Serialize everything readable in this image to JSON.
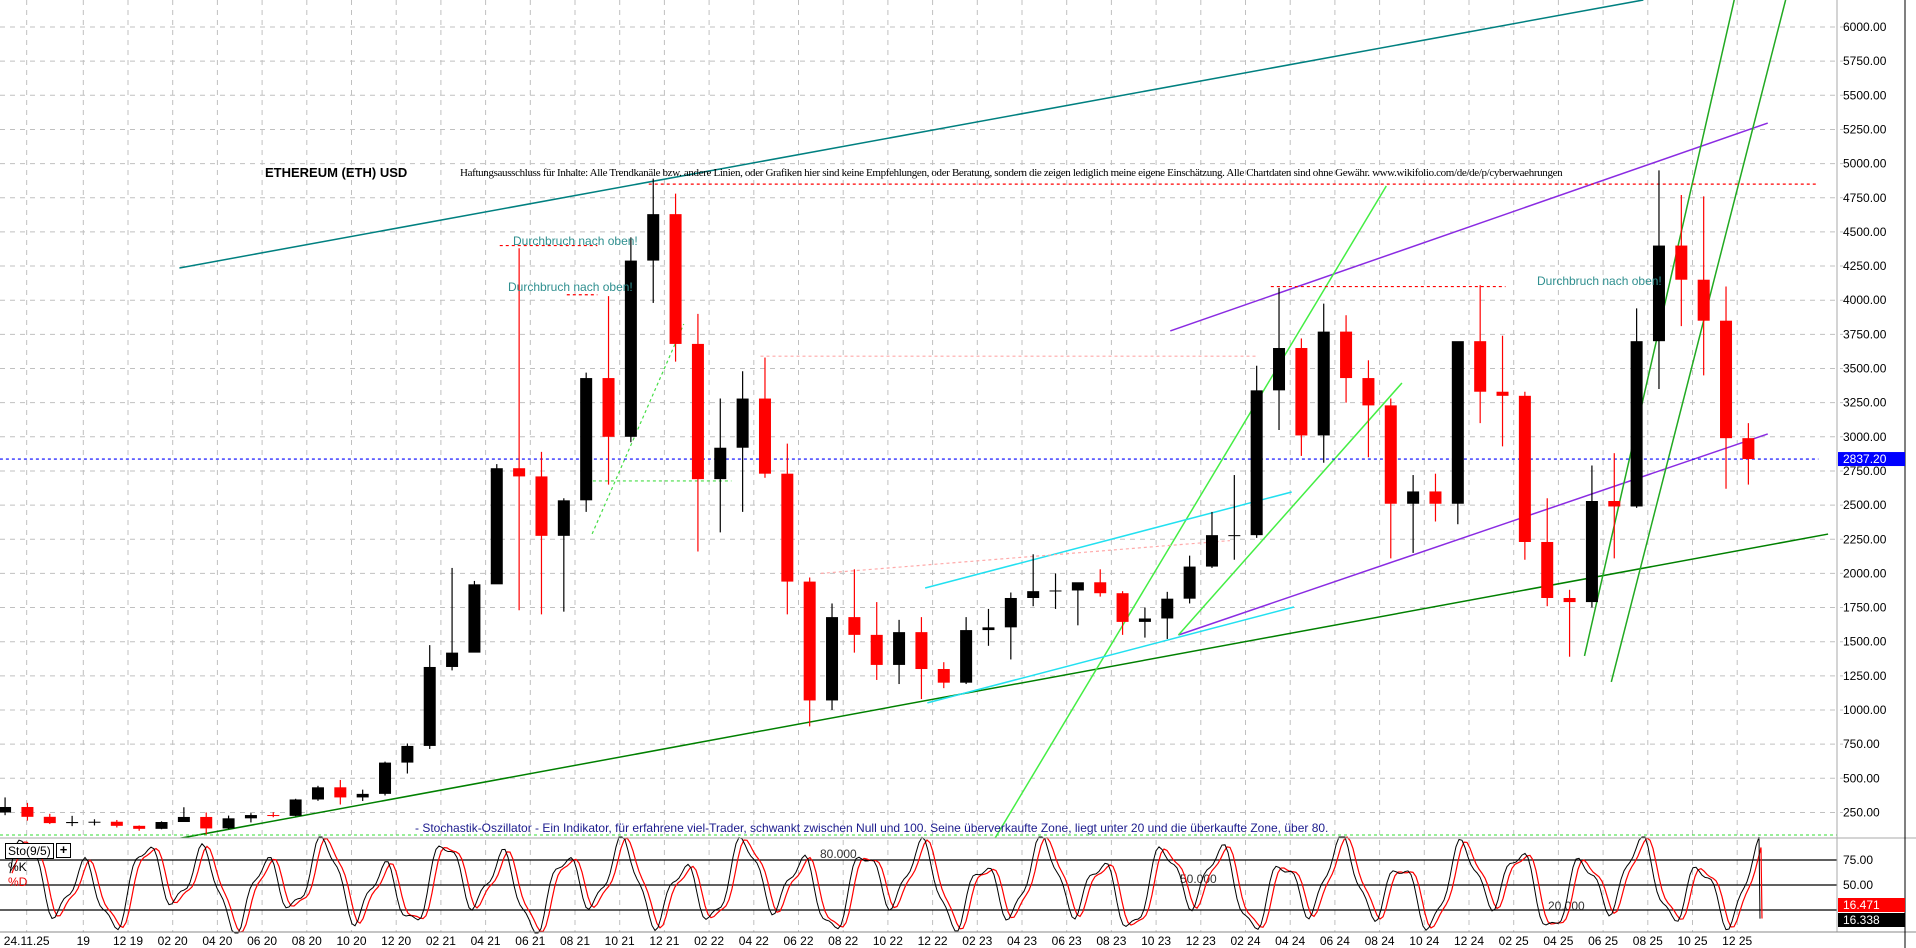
{
  "header": {
    "title": "ETHEREUM (ETH) USD",
    "disclaimer": "Haftungsausschluss für Inhalte: Alle Trendkanäle bzw. andere Linien, oder Grafiken hier sind keine Empfehlungen, oder Beratung, sondern die zeigen lediglich meine eigene Einschätzung. Alle Chartdaten sind ohne Gewähr.  www.wikifolio.com/de/de/p/cyberwaehrungen"
  },
  "annotations": {
    "breakout_labels": [
      "Durchbruch nach oben!",
      "Durchbruch nach oben!",
      "Durchbruch nach oben!"
    ],
    "stochastic_note": "- Stochastik-Oszillator - Ein Indikator, für erfahrene viel-Trader, schwankt zwischen Null und 100. Seine überverkaufte Zone, liegt unter 20 und die überkaufte Zone, über 80."
  },
  "indicator": {
    "label": "Sto(9/5)",
    "plus": "+",
    "k_label": "%K",
    "d_label": "%D",
    "level_labels": [
      "80.000",
      "50.000",
      "20.000"
    ],
    "k_last": "16.338",
    "d_last": "16.471",
    "axis_ticks": [
      "75.00",
      "50.00"
    ],
    "k_color": "#000000",
    "d_color": "#ff0000"
  },
  "colors": {
    "up": "#000000",
    "down": "#ff0000",
    "last_price_box": "#0000ff",
    "grid": "#c0c0c0"
  },
  "chart_data": {
    "type": "candlestick",
    "title": "ETHEREUM (ETH) USD",
    "ylim": [
      0,
      6100
    ],
    "yticks": [
      250,
      500,
      750,
      1000,
      1250,
      1500,
      1750,
      2000,
      2250,
      2500,
      2750,
      3000,
      3250,
      3500,
      3750,
      4000,
      4250,
      4500,
      4750,
      5000,
      5250,
      5500,
      5750,
      6000
    ],
    "last_price": "2837.20",
    "grid": true,
    "xticks": [
      {
        "label": "24.11.25",
        "date": "2019-07-15"
      },
      {
        "label": "19",
        "date": "2019-10-01"
      },
      {
        "label": "12 19",
        "date": "2019-12-01"
      },
      {
        "label": "02 20",
        "date": "2020-02-01"
      },
      {
        "label": "04 20",
        "date": "2020-04-01"
      },
      {
        "label": "06 20",
        "date": "2020-06-01"
      },
      {
        "label": "08 20",
        "date": "2020-08-01"
      },
      {
        "label": "10 20",
        "date": "2020-10-01"
      },
      {
        "label": "12 20",
        "date": "2020-12-01"
      },
      {
        "label": "02 21",
        "date": "2021-02-01"
      },
      {
        "label": "04 21",
        "date": "2021-04-01"
      },
      {
        "label": "06 21",
        "date": "2021-06-01"
      },
      {
        "label": "08 21",
        "date": "2021-08-01"
      },
      {
        "label": "10 21",
        "date": "2021-10-01"
      },
      {
        "label": "12 21",
        "date": "2021-12-01"
      },
      {
        "label": "02 22",
        "date": "2022-02-01"
      },
      {
        "label": "04 22",
        "date": "2022-04-01"
      },
      {
        "label": "06 22",
        "date": "2022-06-01"
      },
      {
        "label": "08 22",
        "date": "2022-08-01"
      },
      {
        "label": "10 22",
        "date": "2022-10-01"
      },
      {
        "label": "12 22",
        "date": "2022-12-01"
      },
      {
        "label": "02 23",
        "date": "2023-02-01"
      },
      {
        "label": "04 23",
        "date": "2023-04-01"
      },
      {
        "label": "06 23",
        "date": "2023-06-01"
      },
      {
        "label": "08 23",
        "date": "2023-08-01"
      },
      {
        "label": "10 23",
        "date": "2023-10-01"
      },
      {
        "label": "12 23",
        "date": "2023-12-01"
      },
      {
        "label": "02 24",
        "date": "2024-02-01"
      },
      {
        "label": "04 24",
        "date": "2024-04-01"
      },
      {
        "label": "06 24",
        "date": "2024-06-01"
      },
      {
        "label": "08 24",
        "date": "2024-08-01"
      },
      {
        "label": "10 24",
        "date": "2024-10-01"
      },
      {
        "label": "12 24",
        "date": "2024-12-01"
      },
      {
        "label": "02 25",
        "date": "2025-02-01"
      },
      {
        "label": "04 25",
        "date": "2025-04-01"
      },
      {
        "label": "06 25",
        "date": "2025-06-01"
      },
      {
        "label": "08 25",
        "date": "2025-08-01"
      },
      {
        "label": "10 25",
        "date": "2025-10-01"
      },
      {
        "label": "12 25",
        "date": "2025-12-01"
      }
    ],
    "ohlc": [
      [
        "2019-06",
        250,
        360,
        230,
        290
      ],
      [
        "2019-07",
        290,
        320,
        190,
        218
      ],
      [
        "2019-08",
        218,
        240,
        165,
        172
      ],
      [
        "2019-09",
        172,
        225,
        150,
        180
      ],
      [
        "2019-10",
        180,
        200,
        155,
        182
      ],
      [
        "2019-11",
        182,
        195,
        140,
        152
      ],
      [
        "2019-12",
        152,
        155,
        116,
        130
      ],
      [
        "2020-01",
        130,
        185,
        127,
        180
      ],
      [
        "2020-02",
        180,
        288,
        180,
        217
      ],
      [
        "2020-03",
        217,
        250,
        90,
        133
      ],
      [
        "2020-04",
        133,
        227,
        128,
        207
      ],
      [
        "2020-05",
        207,
        245,
        177,
        231
      ],
      [
        "2020-06",
        231,
        252,
        215,
        225
      ],
      [
        "2020-07",
        225,
        350,
        222,
        345
      ],
      [
        "2020-08",
        345,
        445,
        335,
        434
      ],
      [
        "2020-09",
        434,
        488,
        308,
        360
      ],
      [
        "2020-10",
        360,
        417,
        334,
        386
      ],
      [
        "2020-11",
        386,
        622,
        374,
        615
      ],
      [
        "2020-12",
        615,
        755,
        535,
        737
      ],
      [
        "2021-01",
        737,
        1475,
        715,
        1315
      ],
      [
        "2021-02",
        1315,
        2040,
        1290,
        1420
      ],
      [
        "2021-03",
        1420,
        1945,
        1430,
        1920
      ],
      [
        "2021-04",
        1920,
        2800,
        1950,
        2770
      ],
      [
        "2021-05",
        2770,
        4380,
        1730,
        2710
      ],
      [
        "2021-06",
        2710,
        2890,
        1700,
        2275
      ],
      [
        "2021-07",
        2275,
        2550,
        1720,
        2535
      ],
      [
        "2021-08",
        2535,
        3470,
        2450,
        3430
      ],
      [
        "2021-09",
        3430,
        4030,
        2650,
        3000
      ],
      [
        "2021-10",
        3000,
        4460,
        2960,
        4290
      ],
      [
        "2021-11",
        4290,
        4890,
        3980,
        4630
      ],
      [
        "2021-12",
        4630,
        4780,
        3550,
        3680
      ],
      [
        "2022-01",
        3680,
        3900,
        2160,
        2690
      ],
      [
        "2022-02",
        2690,
        3280,
        2300,
        2920
      ],
      [
        "2022-03",
        2920,
        3480,
        2450,
        3280
      ],
      [
        "2022-04",
        3280,
        3580,
        2700,
        2730
      ],
      [
        "2022-05",
        2730,
        2950,
        1700,
        1940
      ],
      [
        "2022-06",
        1940,
        1970,
        880,
        1070
      ],
      [
        "2022-07",
        1070,
        1780,
        1000,
        1680
      ],
      [
        "2022-08",
        1680,
        2030,
        1420,
        1550
      ],
      [
        "2022-09",
        1550,
        1790,
        1220,
        1330
      ],
      [
        "2022-10",
        1330,
        1660,
        1190,
        1570
      ],
      [
        "2022-11",
        1570,
        1680,
        1080,
        1300
      ],
      [
        "2022-12",
        1300,
        1350,
        1160,
        1200
      ],
      [
        "2023-01",
        1200,
        1680,
        1190,
        1585
      ],
      [
        "2023-02",
        1585,
        1740,
        1470,
        1605
      ],
      [
        "2023-03",
        1605,
        1860,
        1370,
        1820
      ],
      [
        "2023-04",
        1820,
        2140,
        1760,
        1870
      ],
      [
        "2023-05",
        1870,
        2000,
        1740,
        1875
      ],
      [
        "2023-06",
        1875,
        1930,
        1620,
        1935
      ],
      [
        "2023-07",
        1935,
        2030,
        1830,
        1855
      ],
      [
        "2023-08",
        1855,
        1870,
        1550,
        1645
      ],
      [
        "2023-09",
        1645,
        1750,
        1530,
        1670
      ],
      [
        "2023-10",
        1670,
        1865,
        1520,
        1815
      ],
      [
        "2023-11",
        1815,
        2130,
        1780,
        2050
      ],
      [
        "2023-12",
        2050,
        2450,
        2040,
        2280
      ],
      [
        "2024-01",
        2280,
        2720,
        2100,
        2280
      ],
      [
        "2024-02",
        2280,
        3520,
        2260,
        3340
      ],
      [
        "2024-03",
        3340,
        4090,
        3050,
        3650
      ],
      [
        "2024-04",
        3650,
        3720,
        2860,
        3010
      ],
      [
        "2024-05",
        3010,
        3975,
        2810,
        3770
      ],
      [
        "2024-06",
        3770,
        3890,
        3250,
        3430
      ],
      [
        "2024-07",
        3430,
        3560,
        2850,
        3230
      ],
      [
        "2024-08",
        3230,
        3280,
        2110,
        2510
      ],
      [
        "2024-09",
        2510,
        2720,
        2150,
        2600
      ],
      [
        "2024-10",
        2600,
        2730,
        2380,
        2510
      ],
      [
        "2024-11",
        2510,
        3660,
        2360,
        3700
      ],
      [
        "2024-12",
        3700,
        4110,
        3100,
        3330
      ],
      [
        "2025-01",
        3330,
        3740,
        2930,
        3300
      ],
      [
        "2025-02",
        3300,
        3330,
        2100,
        2230
      ],
      [
        "2025-03",
        2230,
        2550,
        1760,
        1820
      ],
      [
        "2025-04",
        1820,
        1880,
        1390,
        1790
      ],
      [
        "2025-05",
        1790,
        2790,
        1750,
        2530
      ],
      [
        "2025-06",
        2530,
        2880,
        2110,
        2490
      ],
      [
        "2025-07",
        2490,
        3940,
        2480,
        3700
      ],
      [
        "2025-08",
        3700,
        4950,
        3350,
        4400
      ],
      [
        "2025-09",
        4400,
        4770,
        3810,
        4150
      ],
      [
        "2025-10",
        4150,
        4760,
        3450,
        3850
      ],
      [
        "2025-11",
        3850,
        4100,
        2620,
        2990
      ],
      [
        "2025-12",
        2990,
        3100,
        2650,
        2837.2
      ]
    ],
    "trendlines": [
      {
        "from": [
          "2020-02-10",
          4236
        ],
        "to": [
          "2025-07-25",
          6198
        ],
        "color": "#008080"
      },
      {
        "from": [
          "2020-02-10",
          60
        ],
        "to": [
          "2026-04-03",
          2288
        ],
        "color": "#008000"
      },
      {
        "from": [
          "2023-10-20",
          3775
        ],
        "to": [
          "2026-01-12",
          5297
        ],
        "color": "#8a2be2"
      },
      {
        "from": [
          "2023-11-01",
          1549
        ],
        "to": [
          "2026-01-12",
          3021
        ],
        "color": "#8a2be2"
      },
      {
        "from": [
          "2025-06-12",
          1205
        ],
        "to": [
          "2026-02-06",
          6198
        ],
        "color": "#22aa22"
      },
      {
        "from": [
          "2025-05-06",
          1396
        ],
        "to": [
          "2025-11-27",
          6198
        ],
        "color": "#22aa22"
      },
      {
        "from": [
          "2023-02-18",
          0
        ],
        "to": [
          "2024-08-10",
          4836
        ],
        "color": "#44ee44"
      },
      {
        "from": [
          "2023-11-01",
          1549
        ],
        "to": [
          "2024-09-01",
          3394
        ],
        "color": "#44ee44"
      },
      {
        "from": [
          "2022-11-21",
          1893
        ],
        "to": [
          "2024-04-03",
          2596
        ],
        "color": "#22e0f0"
      },
      {
        "from": [
          "2022-11-24",
          1052
        ],
        "to": [
          "2024-04-06",
          1754
        ],
        "color": "#22e0f0"
      }
    ],
    "dashed_lines": [
      {
        "from": [
          "2021-08-24",
          2289
        ],
        "to": [
          "2021-12-27",
          3826
        ],
        "color": "#44dd44"
      },
      {
        "from": [
          "2021-08-25",
          2677
        ],
        "to": [
          "2022-03-01",
          2677
        ],
        "color": "#44dd44"
      },
      {
        "from": [
          "2021-11-10",
          4850
        ],
        "to": [
          "2026-03-20",
          4850
        ],
        "color": "#ff0000"
      },
      {
        "from": [
          "2024-03-05",
          4100
        ],
        "to": [
          "2025-01-20",
          4100
        ],
        "color": "#ff0000"
      },
      {
        "from": [
          "2021-04-20",
          4400
        ],
        "to": [
          "2021-09-01",
          4400
        ],
        "color": "#ff0000"
      },
      {
        "from": [
          "2021-07-20",
          4040
        ],
        "to": [
          "2021-09-01",
          4040
        ],
        "color": "#ff0000"
      },
      {
        "from": [
          "2022-04-10",
          3590
        ],
        "to": [
          "2024-02-15",
          3590
        ],
        "color": "#ffaaaa"
      },
      {
        "from": [
          "2022-07-01",
          2000
        ],
        "to": [
          "2024-01-10",
          2240
        ],
        "color": "#ffaaaa"
      },
      {
        "from": [
          "2019-06-01",
          2837.2
        ],
        "to": [
          "2026-03-20",
          2837.2
        ],
        "color": "#0000ff"
      }
    ]
  }
}
